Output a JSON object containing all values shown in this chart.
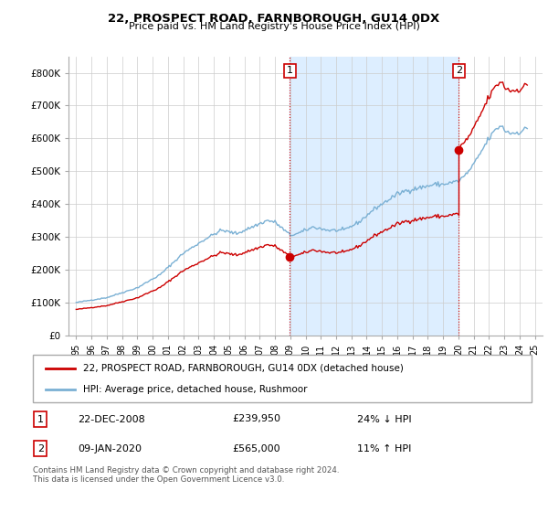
{
  "title": "22, PROSPECT ROAD, FARNBOROUGH, GU14 0DX",
  "subtitle": "Price paid vs. HM Land Registry's House Price Index (HPI)",
  "legend_line1": "22, PROSPECT ROAD, FARNBOROUGH, GU14 0DX (detached house)",
  "legend_line2": "HPI: Average price, detached house, Rushmoor",
  "footnote": "Contains HM Land Registry data © Crown copyright and database right 2024.\nThis data is licensed under the Open Government Licence v3.0.",
  "marker1_date": "22-DEC-2008",
  "marker1_price": "£239,950",
  "marker1_hpi": "24% ↓ HPI",
  "marker1_year": 2008.97,
  "marker1_value": 239950,
  "marker2_date": "09-JAN-2020",
  "marker2_price": "£565,000",
  "marker2_hpi": "11% ↑ HPI",
  "marker2_year": 2020.03,
  "marker2_value": 565000,
  "price_line_color": "#cc0000",
  "hpi_line_color": "#7ab0d4",
  "shade_color": "#ddeeff",
  "marker_color": "#cc0000",
  "dashed_line_color": "#cc0000",
  "ylim_min": 0,
  "ylim_max": 850000,
  "yticks": [
    0,
    100000,
    200000,
    300000,
    400000,
    500000,
    600000,
    700000,
    800000
  ],
  "ytick_labels": [
    "£0",
    "£100K",
    "£200K",
    "£300K",
    "£400K",
    "£500K",
    "£600K",
    "£700K",
    "£800K"
  ],
  "xlim_min": 1994.5,
  "xlim_max": 2025.5,
  "xticks": [
    1995,
    1996,
    1997,
    1998,
    1999,
    2000,
    2001,
    2002,
    2003,
    2004,
    2005,
    2006,
    2007,
    2008,
    2009,
    2010,
    2011,
    2012,
    2013,
    2014,
    2015,
    2016,
    2017,
    2018,
    2019,
    2020,
    2021,
    2022,
    2023,
    2024,
    2025
  ],
  "background_color": "#ffffff",
  "grid_color": "#cccccc"
}
